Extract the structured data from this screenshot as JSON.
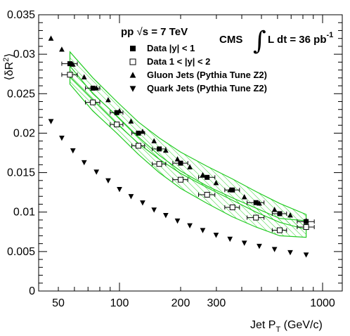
{
  "chart_data": {
    "type": "scatter",
    "x_scale": "log",
    "xlim": [
      40,
      1250
    ],
    "ylim": [
      0,
      0.035
    ],
    "x_ticks": [
      50,
      100,
      200,
      300,
      1000
    ],
    "x_tick_labels": [
      "50",
      "100",
      "200",
      "300",
      "1000"
    ],
    "y_ticks": [
      0,
      0.005,
      0.01,
      0.015,
      0.02,
      0.025,
      0.03,
      0.035
    ],
    "y_tick_labels": [
      "0",
      "0.005",
      "0.01",
      "0.015",
      "0.02",
      "0.025",
      "0.03",
      "0.035"
    ],
    "xlabel_main": "Jet P",
    "xlabel_sub": "T",
    "xlabel_unit": " (GeV/c)",
    "ylabel_pre": "⟨δR",
    "ylabel_sup": "2",
    "ylabel_post": "⟩",
    "header": {
      "energy_pre": "pp ",
      "energy_root": "√",
      "energy_post": "s = 7 TeV",
      "experiment": "CMS",
      "integral": "∫",
      "lumi_pre": "L dt = 36 pb",
      "lumi_sup": "-1"
    },
    "legend": [
      {
        "label": "Data  |y| < 1",
        "marker": "filled-square"
      },
      {
        "label": "Data 1 < |y| < 2",
        "marker": "open-square"
      },
      {
        "label": "Gluon Jets (Pythia Tune Z2)",
        "marker": "triangle-up"
      },
      {
        "label": "Quark Jets (Pythia Tune Z2)",
        "marker": "triangle-down"
      }
    ],
    "series": [
      {
        "name": "Data  |y| < 1",
        "marker": "filled-square",
        "x": [
          57,
          74,
          97,
          124,
          157,
          200,
          270,
          360,
          470,
          615,
          830
        ],
        "y": [
          0.0288,
          0.0257,
          0.0226,
          0.02,
          0.018,
          0.0162,
          0.0144,
          0.0128,
          0.0112,
          0.0098,
          0.0088
        ],
        "xerr": [
          [
            5,
            6,
            7,
            9,
            12,
            17,
            25,
            30,
            45,
            50,
            80
          ],
          [
            5,
            6,
            7,
            9,
            12,
            17,
            25,
            30,
            45,
            50,
            80
          ]
        ],
        "band": {
          "upper": [
            0.0303,
            0.027,
            0.024,
            0.0214,
            0.0194,
            0.0176,
            0.0158,
            0.0142,
            0.0126,
            0.0111,
            0.0097
          ],
          "lower": [
            0.0271,
            0.0242,
            0.0212,
            0.0187,
            0.0167,
            0.0149,
            0.0131,
            0.0115,
            0.01,
            0.0087,
            0.0078
          ]
        }
      },
      {
        "name": "Data 1 < |y| < 2",
        "marker": "open-square",
        "x": [
          57,
          74,
          97,
          124,
          157,
          200,
          270,
          360,
          470,
          615,
          830
        ],
        "y": [
          0.0274,
          0.0239,
          0.0211,
          0.0184,
          0.0161,
          0.0141,
          0.0122,
          0.0106,
          0.0093,
          0.0077,
          0.0081
        ],
        "xerr": [
          [
            5,
            6,
            7,
            9,
            12,
            17,
            25,
            30,
            45,
            50,
            80
          ],
          [
            5,
            6,
            7,
            9,
            12,
            17,
            25,
            30,
            45,
            50,
            80
          ]
        ],
        "band": {
          "upper": [
            0.0285,
            0.025,
            0.0222,
            0.0195,
            0.0172,
            0.0152,
            0.0133,
            0.0118,
            0.0105,
            0.0092,
            0.0089
          ],
          "lower": [
            0.0262,
            0.0228,
            0.02,
            0.0173,
            0.015,
            0.013,
            0.0111,
            0.0094,
            0.0081,
            0.007,
            0.0068
          ]
        }
      },
      {
        "name": "Gluon Jets (Pythia Tune Z2)",
        "marker": "triangle-up",
        "x": [
          46,
          52,
          59,
          67,
          77,
          88,
          100,
          114,
          130,
          148,
          169,
          193,
          222,
          257,
          299,
          350,
          412,
          488,
          580,
          693,
          830
        ],
        "y": [
          0.032,
          0.0306,
          0.0287,
          0.0271,
          0.0257,
          0.0242,
          0.0228,
          0.0215,
          0.0202,
          0.019,
          0.0178,
          0.0167,
          0.0157,
          0.0147,
          0.0137,
          0.0128,
          0.0119,
          0.0111,
          0.0103,
          0.0096,
          0.0089
        ]
      },
      {
        "name": "Quark Jets (Pythia Tune Z2)",
        "marker": "triangle-down",
        "x": [
          46,
          52,
          59,
          67,
          77,
          88,
          100,
          114,
          130,
          148,
          169,
          193,
          222,
          257,
          299,
          350,
          412,
          488,
          580,
          693,
          830
        ],
        "y": [
          0.0215,
          0.0194,
          0.0178,
          0.0163,
          0.0151,
          0.014,
          0.0129,
          0.012,
          0.0112,
          0.0103,
          0.0096,
          0.0089,
          0.0083,
          0.0077,
          0.0071,
          0.0066,
          0.0061,
          0.0057,
          0.0053,
          0.0049,
          0.0046
        ]
      }
    ],
    "colors": {
      "band": "#22cc22",
      "marker": "#000000",
      "background": "#ffffff"
    }
  }
}
